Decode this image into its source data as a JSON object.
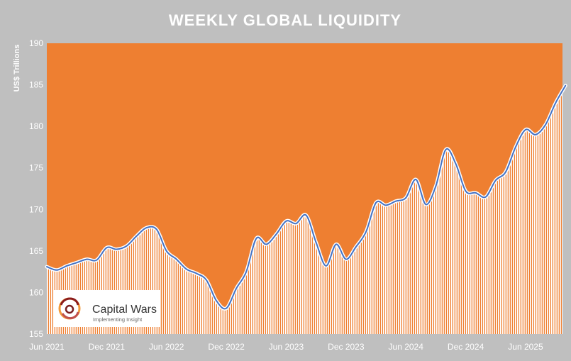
{
  "chart_data": {
    "type": "area",
    "title": "WEEKLY GLOBAL LIQUIDITY",
    "ylabel": "US$ Trillions",
    "xlabel": "",
    "ylim": [
      155,
      190
    ],
    "yticks": [
      155,
      160,
      165,
      170,
      175,
      180,
      185,
      190
    ],
    "xticks": [
      "Jun 2021",
      "Dec 2021",
      "Jun 2022",
      "Dec 2022",
      "Jun 2023",
      "Dec 2023",
      "Jun 2024",
      "Dec 2024",
      "Jun 2025"
    ],
    "x_range": [
      "2021-06",
      "2025-09"
    ],
    "grid": false,
    "series": [
      {
        "points": [
          [
            "2021-06",
            163.1
          ],
          [
            "2021-07",
            162.7
          ],
          [
            "2021-08",
            163.2
          ],
          [
            "2021-09",
            163.6
          ],
          [
            "2021-10",
            164.0
          ],
          [
            "2021-11",
            163.9
          ],
          [
            "2021-12",
            165.4
          ],
          [
            "2022-01",
            165.2
          ],
          [
            "2022-02",
            165.6
          ],
          [
            "2022-03",
            166.8
          ],
          [
            "2022-04",
            167.8
          ],
          [
            "2022-05",
            167.6
          ],
          [
            "2022-06",
            165.0
          ],
          [
            "2022-07",
            164.0
          ],
          [
            "2022-08",
            162.8
          ],
          [
            "2022-09",
            162.3
          ],
          [
            "2022-10",
            161.5
          ],
          [
            "2022-11",
            159.0
          ],
          [
            "2022-12",
            158.1
          ],
          [
            "2023-01",
            160.5
          ],
          [
            "2023-02",
            162.5
          ],
          [
            "2023-03",
            166.5
          ],
          [
            "2023-04",
            165.8
          ],
          [
            "2023-05",
            167.0
          ],
          [
            "2023-06",
            168.6
          ],
          [
            "2023-07",
            168.3
          ],
          [
            "2023-08",
            169.3
          ],
          [
            "2023-09",
            166.0
          ],
          [
            "2023-10",
            163.2
          ],
          [
            "2023-11",
            165.8
          ],
          [
            "2023-12",
            164.0
          ],
          [
            "2024-01",
            165.5
          ],
          [
            "2024-02",
            167.3
          ],
          [
            "2024-03",
            170.8
          ],
          [
            "2024-04",
            170.5
          ],
          [
            "2024-05",
            171.0
          ],
          [
            "2024-06",
            171.4
          ],
          [
            "2024-07",
            173.6
          ],
          [
            "2024-08",
            170.6
          ],
          [
            "2024-09",
            172.8
          ],
          [
            "2024-10",
            177.2
          ],
          [
            "2024-11",
            175.5
          ],
          [
            "2024-12",
            172.2
          ],
          [
            "2025-01",
            172.0
          ],
          [
            "2025-02",
            171.5
          ],
          [
            "2025-03",
            173.5
          ],
          [
            "2025-04",
            174.5
          ],
          [
            "2025-05",
            177.5
          ],
          [
            "2025-06",
            179.6
          ],
          [
            "2025-07",
            179.0
          ],
          [
            "2025-08",
            180.2
          ],
          [
            "2025-09",
            182.8
          ],
          [
            "2025-10",
            184.9
          ]
        ]
      }
    ]
  },
  "logo": {
    "name": "Capital Wars",
    "tagline": "Implementing Insight",
    "icon": "swirl-logo-icon"
  },
  "colors": {
    "plot_background": "#ee7f31",
    "outer_background": "#bfbfbf",
    "line": "#4472c4",
    "line_halo": "#ffffff",
    "fill_stripes": "#ffffff"
  }
}
